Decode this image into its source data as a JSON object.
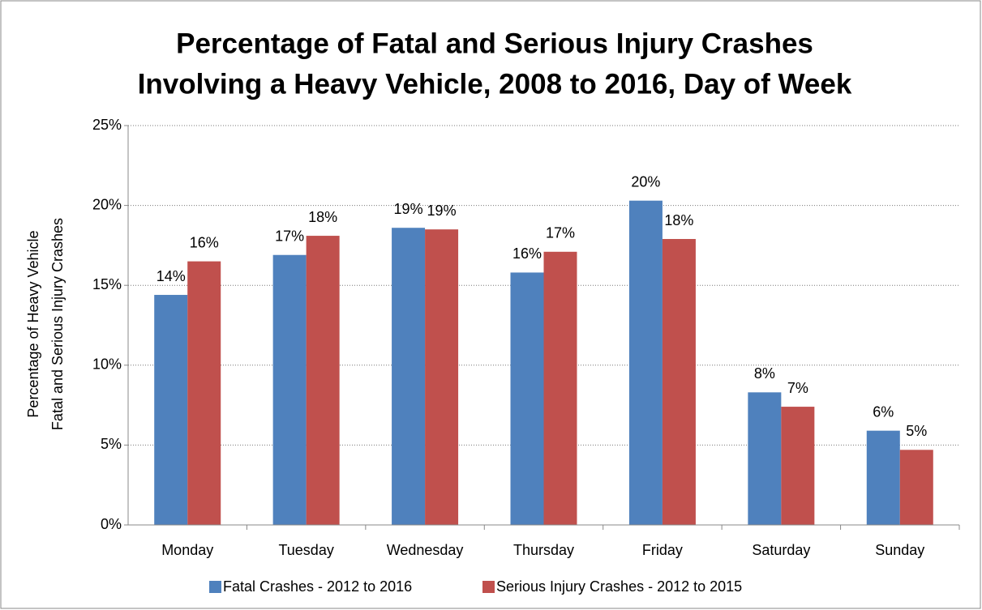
{
  "chart_data": {
    "type": "bar",
    "title": [
      "Percentage of Fatal and Serious Injury Crashes",
      "Involving a Heavy Vehicle, 2008 to 2016, Day of Week"
    ],
    "y_label": [
      "Percentage of Heavy Vehicle",
      "Fatal and Serious Injury Crashes"
    ],
    "categories": [
      "Monday",
      "Tuesday",
      "Wednesday",
      "Thursday",
      "Friday",
      "Saturday",
      "Sunday"
    ],
    "series": [
      {
        "name": "Fatal Crashes - 2012 to 2016",
        "color": "#4f81bd",
        "values": [
          14.4,
          16.9,
          18.6,
          15.8,
          20.3,
          8.3,
          5.9
        ],
        "value_labels": [
          "14%",
          "17%",
          "19%",
          "16%",
          "20%",
          "8%",
          "6%"
        ]
      },
      {
        "name": "Serious Injury Crashes - 2012 to 2015",
        "color": "#c0504d",
        "values": [
          16.5,
          18.1,
          18.5,
          17.1,
          17.9,
          7.4,
          4.7
        ],
        "value_labels": [
          "16%",
          "18%",
          "19%",
          "17%",
          "18%",
          "7%",
          "5%"
        ]
      }
    ],
    "ylim": [
      0,
      25
    ],
    "yticks": [
      {
        "value": 0,
        "label": "0%"
      },
      {
        "value": 5,
        "label": "5%"
      },
      {
        "value": 10,
        "label": "10%"
      },
      {
        "value": 15,
        "label": "15%"
      },
      {
        "value": 20,
        "label": "20%"
      },
      {
        "value": 25,
        "label": "25%"
      }
    ],
    "grid": true,
    "legend": "bottom"
  }
}
